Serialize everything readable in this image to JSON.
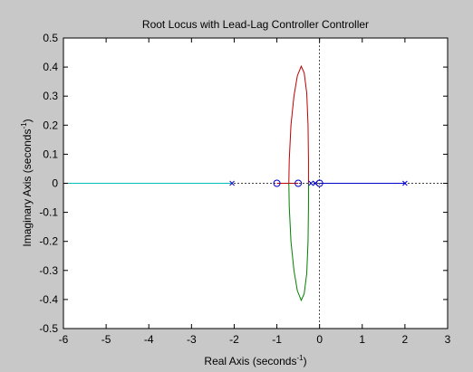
{
  "chart_data": {
    "type": "scatter",
    "title": "Root Locus with Lead-Lag Controller Controller",
    "xlabel": "Real Axis (seconds",
    "xlabel_sup": "-1",
    "xlabel_tail": ")",
    "ylabel": "Imaginary Axis (seconds",
    "ylabel_sup": "-1",
    "ylabel_tail": ")",
    "xlim": [
      -6,
      3
    ],
    "ylim": [
      -0.5,
      0.5
    ],
    "x_ticks": [
      -6,
      -5,
      -4,
      -3,
      -2,
      -1,
      0,
      1,
      2,
      3
    ],
    "y_ticks": [
      -0.5,
      -0.4,
      -0.3,
      -0.2,
      -0.1,
      0,
      0.1,
      0.2,
      0.3,
      0.4,
      0.5
    ],
    "x_tick_labels": [
      "-6",
      "-5",
      "-4",
      "-3",
      "-2",
      "-1",
      "0",
      "1",
      "2",
      "3"
    ],
    "y_tick_labels": [
      "-0.5",
      "-0.4",
      "-0.3",
      "-0.2",
      "-0.1",
      "0",
      "0.1",
      "0.2",
      "0.3",
      "0.4",
      "0.5"
    ],
    "poles": [
      -2.05,
      -0.2,
      -0.1,
      2.0
    ],
    "zeros": [
      -1.0,
      -0.5,
      0.0
    ],
    "branches": [
      {
        "color": "#00bfbf",
        "points": [
          [
            -6,
            0
          ],
          [
            -2.05,
            0
          ]
        ]
      },
      {
        "color": "#bf0000",
        "points": [
          [
            -1.0,
            0
          ],
          [
            -0.5,
            0
          ]
        ]
      },
      {
        "color": "#0000cc",
        "points": [
          [
            0.0,
            0
          ],
          [
            2.0,
            0
          ]
        ]
      },
      {
        "color": "#bf0000",
        "points": [
          [
            -0.72,
            0
          ],
          [
            -0.71,
            0.08
          ],
          [
            -0.67,
            0.2
          ],
          [
            -0.6,
            0.3
          ],
          [
            -0.52,
            0.37
          ],
          [
            -0.43,
            0.403
          ],
          [
            -0.36,
            0.38
          ],
          [
            -0.3,
            0.31
          ],
          [
            -0.27,
            0.2
          ],
          [
            -0.26,
            0.08
          ],
          [
            -0.26,
            0
          ]
        ]
      },
      {
        "color": "#008000",
        "points": [
          [
            -0.72,
            0
          ],
          [
            -0.71,
            -0.08
          ],
          [
            -0.67,
            -0.2
          ],
          [
            -0.6,
            -0.3
          ],
          [
            -0.52,
            -0.37
          ],
          [
            -0.43,
            -0.403
          ],
          [
            -0.36,
            -0.38
          ],
          [
            -0.3,
            -0.31
          ],
          [
            -0.27,
            -0.2
          ],
          [
            -0.26,
            -0.08
          ],
          [
            -0.26,
            0
          ]
        ]
      }
    ],
    "grid": false,
    "colors": {
      "background": "#c8c8c8",
      "axes": "#ffffff",
      "pole": "#0000cc",
      "zero": "#0000cc",
      "guide": "#000000"
    }
  }
}
